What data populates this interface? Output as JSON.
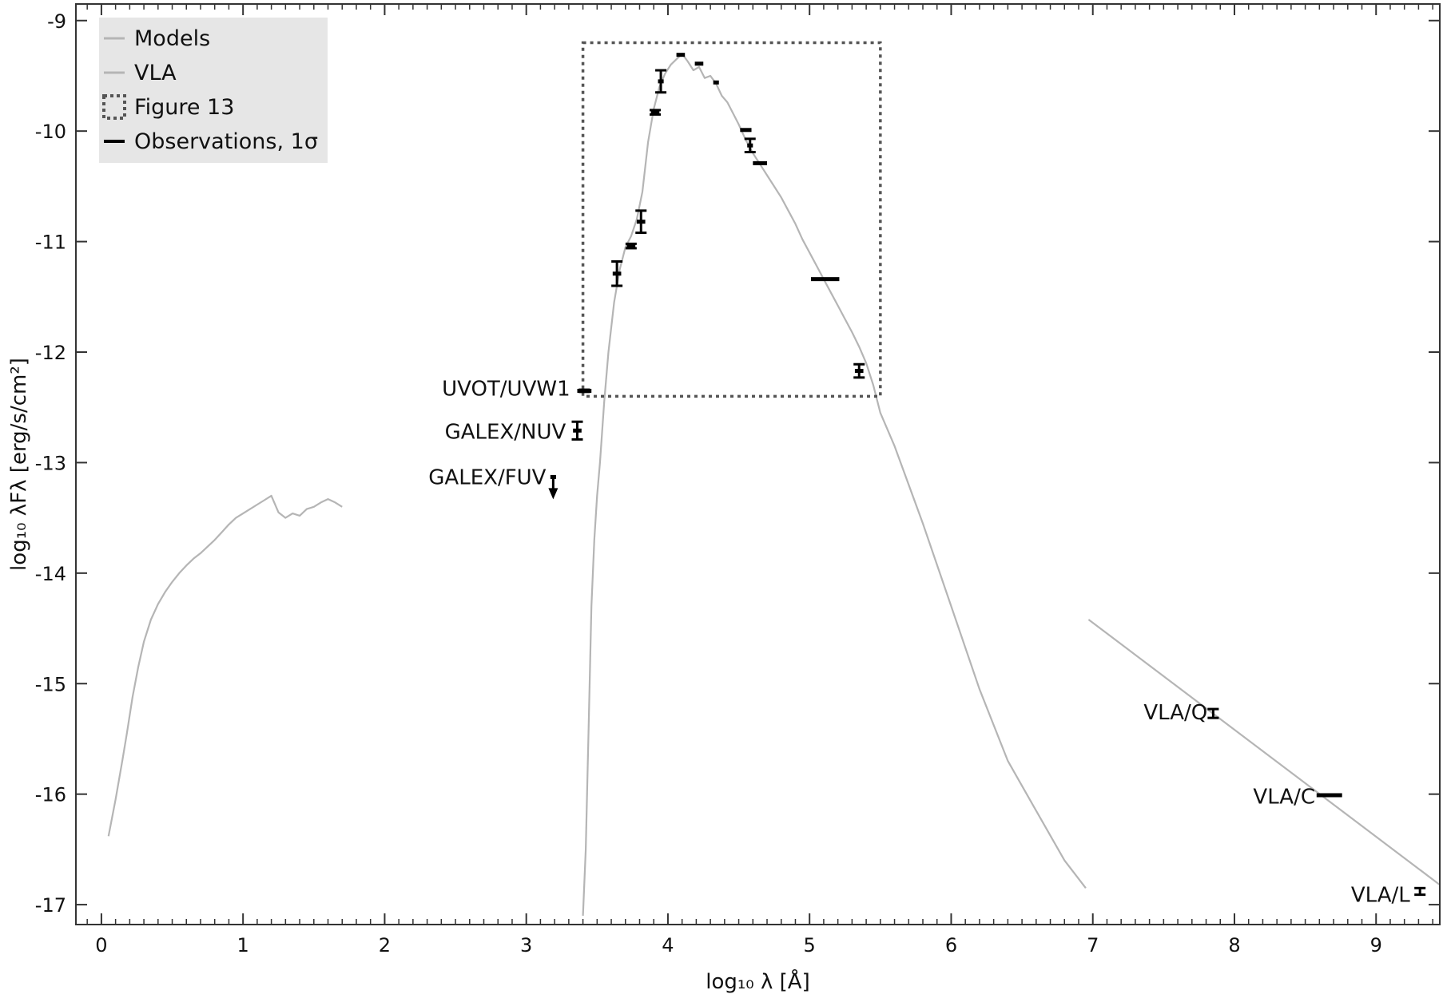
{
  "chart_data": {
    "type": "line",
    "title": "",
    "xlabel": "log₁₀ λ [Å]",
    "ylabel": "log₁₀ λFλ [erg/s/cm²]",
    "xlim": [
      -0.18,
      9.45
    ],
    "ylim": [
      -17.18,
      -8.85
    ],
    "xticks": [
      0,
      1,
      2,
      3,
      4,
      5,
      6,
      7,
      8,
      9
    ],
    "yticks": [
      -17,
      -16,
      -15,
      -14,
      -13,
      -12,
      -11,
      -10,
      -9
    ],
    "grid": false,
    "legend_position": "top-left",
    "colors": {
      "model": "#b5b5b5",
      "observation": "#000000",
      "box": "#555555",
      "legend_bg": "#e6e6e6"
    },
    "legend": [
      {
        "label": "Models",
        "style": "gray-line"
      },
      {
        "label": "VLA",
        "style": "gray-line"
      },
      {
        "label": "Figure 13",
        "style": "dotted-box"
      },
      {
        "label": "Observations, 1σ",
        "style": "black-line"
      }
    ],
    "series": [
      {
        "name": "Models",
        "x": [
          0.05,
          0.1,
          0.15,
          0.18,
          0.22,
          0.26,
          0.3,
          0.35,
          0.4,
          0.45,
          0.5,
          0.55,
          0.6,
          0.65,
          0.7,
          0.75,
          0.8,
          0.85,
          0.9,
          0.95,
          1.0,
          1.05,
          1.1,
          1.15,
          1.2,
          1.25,
          1.3,
          1.35,
          1.4,
          1.45,
          1.5,
          1.55,
          1.6,
          1.65,
          1.7
        ],
        "y": [
          -16.38,
          -16.05,
          -15.68,
          -15.45,
          -15.12,
          -14.85,
          -14.62,
          -14.42,
          -14.28,
          -14.17,
          -14.08,
          -14.0,
          -13.93,
          -13.87,
          -13.82,
          -13.76,
          -13.7,
          -13.63,
          -13.56,
          -13.5,
          -13.46,
          -13.42,
          -13.38,
          -13.34,
          -13.3,
          -13.45,
          -13.5,
          -13.46,
          -13.48,
          -13.42,
          -13.4,
          -13.36,
          -13.33,
          -13.36,
          -13.4
        ]
      },
      {
        "name": "Models",
        "x": [
          3.4,
          3.42,
          3.44,
          3.46,
          3.48,
          3.5,
          3.52,
          3.55,
          3.58,
          3.62,
          3.66,
          3.7,
          3.74,
          3.78,
          3.82,
          3.86,
          3.9,
          3.94,
          3.98,
          4.02,
          4.06,
          4.1,
          4.14,
          4.18,
          4.22,
          4.26,
          4.3,
          4.34,
          4.38,
          4.42,
          4.46,
          4.5,
          4.55,
          4.6,
          4.65,
          4.7,
          4.75,
          4.8,
          4.85,
          4.9,
          4.95,
          5.0,
          5.05,
          5.1,
          5.15,
          5.2,
          5.25,
          5.3,
          5.35,
          5.4,
          5.45,
          5.5,
          5.6,
          5.8,
          6.0,
          6.2,
          6.4,
          6.6,
          6.8,
          6.95
        ],
        "y": [
          -17.1,
          -16.5,
          -15.4,
          -14.3,
          -13.7,
          -13.3,
          -13.0,
          -12.45,
          -12.0,
          -11.55,
          -11.25,
          -11.05,
          -10.95,
          -10.8,
          -10.55,
          -10.1,
          -9.8,
          -9.6,
          -9.48,
          -9.4,
          -9.35,
          -9.3,
          -9.37,
          -9.45,
          -9.42,
          -9.52,
          -9.5,
          -9.57,
          -9.68,
          -9.74,
          -9.84,
          -9.94,
          -10.08,
          -10.2,
          -10.3,
          -10.4,
          -10.5,
          -10.6,
          -10.72,
          -10.84,
          -10.98,
          -11.1,
          -11.22,
          -11.34,
          -11.46,
          -11.58,
          -11.7,
          -11.82,
          -11.95,
          -12.1,
          -12.3,
          -12.55,
          -12.85,
          -13.55,
          -14.3,
          -15.05,
          -15.7,
          -16.15,
          -16.6,
          -16.85
        ]
      },
      {
        "name": "VLA",
        "x": [
          6.97,
          9.45
        ],
        "y": [
          -14.42,
          -16.82
        ]
      }
    ],
    "observations": [
      {
        "x": 3.41,
        "y": -12.35,
        "xerr": 0.05,
        "yerr": 0.01
      },
      {
        "x": 3.36,
        "y": -12.71,
        "xerr": 0.03,
        "yerr": 0.08
      },
      {
        "x": 3.19,
        "y": -13.13,
        "xerr": 0.02,
        "yerr": 0.0,
        "upper_limit": true
      },
      {
        "x": 3.64,
        "y": -11.29,
        "xerr": 0.03,
        "yerr": 0.11
      },
      {
        "x": 3.74,
        "y": -11.04,
        "xerr": 0.03,
        "yerr": 0.02
      },
      {
        "x": 3.81,
        "y": -10.82,
        "xerr": 0.03,
        "yerr": 0.1
      },
      {
        "x": 3.91,
        "y": -9.83,
        "xerr": 0.03,
        "yerr": 0.02
      },
      {
        "x": 3.95,
        "y": -9.55,
        "xerr": 0.02,
        "yerr": 0.1
      },
      {
        "x": 4.09,
        "y": -9.31,
        "xerr": 0.03,
        "yerr": 0.0
      },
      {
        "x": 4.22,
        "y": -9.39,
        "xerr": 0.03,
        "yerr": 0.0
      },
      {
        "x": 4.34,
        "y": -9.56,
        "xerr": 0.02,
        "yerr": 0.0
      },
      {
        "x": 4.55,
        "y": -9.99,
        "xerr": 0.04,
        "yerr": 0.0
      },
      {
        "x": 4.58,
        "y": -10.13,
        "xerr": 0.02,
        "yerr": 0.06
      },
      {
        "x": 4.65,
        "y": -10.29,
        "xerr": 0.05,
        "yerr": 0.0
      },
      {
        "x": 5.11,
        "y": -11.34,
        "xerr": 0.1,
        "yerr": 0.0
      },
      {
        "x": 5.35,
        "y": -12.17,
        "xerr": 0.03,
        "yerr": 0.06
      },
      {
        "x": 7.85,
        "y": -15.27,
        "xerr": 0.0,
        "yerr": 0.04
      },
      {
        "x": 8.67,
        "y": -16.01,
        "xerr": 0.09,
        "yerr": 0.0
      },
      {
        "x": 9.31,
        "y": -16.88,
        "xerr": 0.0,
        "yerr": 0.03
      }
    ],
    "box": {
      "x": [
        3.4,
        5.5
      ],
      "y": [
        -12.4,
        -9.2
      ],
      "label": "Figure 13"
    },
    "annotations": [
      {
        "text": "UVOT/UVW1",
        "x": 3.31,
        "y": -12.33
      },
      {
        "text": "GALEX/NUV",
        "x": 3.28,
        "y": -12.72
      },
      {
        "text": "GALEX/FUV",
        "x": 3.14,
        "y": -13.13
      },
      {
        "text": "VLA/Q",
        "x": 7.81,
        "y": -15.26
      },
      {
        "text": "VLA/C",
        "x": 8.57,
        "y": -16.02
      },
      {
        "text": "VLA/L",
        "x": 9.24,
        "y": -16.91
      }
    ]
  }
}
